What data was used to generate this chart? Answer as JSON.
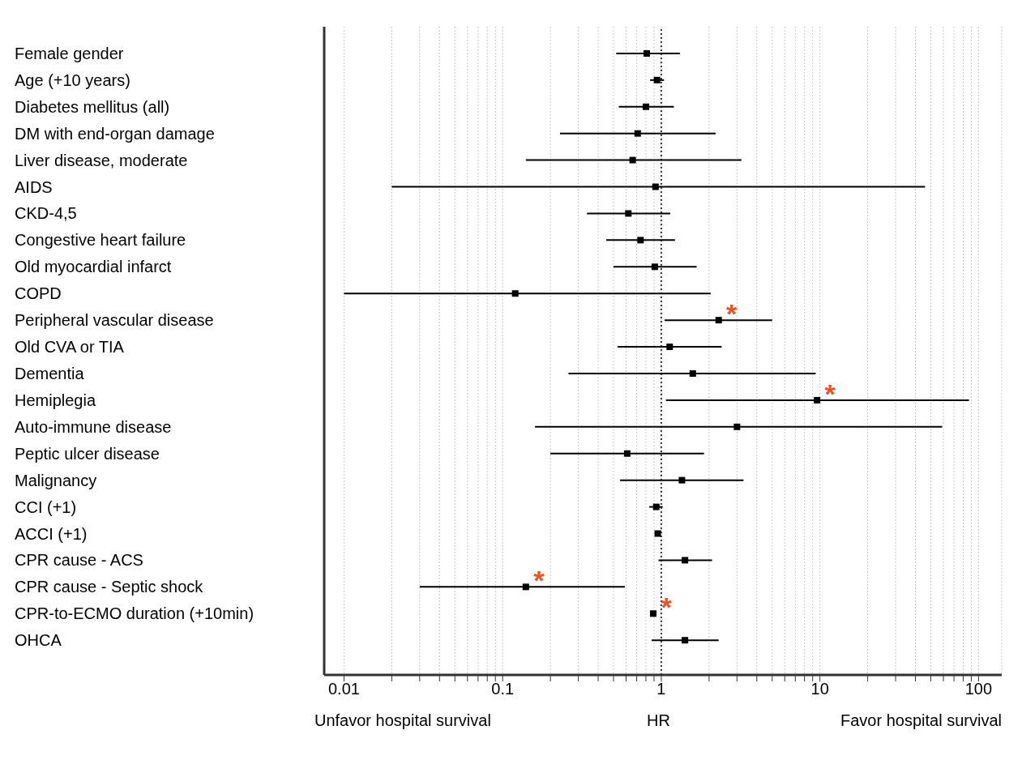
{
  "chart_data": {
    "type": "scatter",
    "orientation": "horizontal",
    "log": "x",
    "marker": "square",
    "grid": "x",
    "xlabel": "HR",
    "categories": [
      "Female gender",
      "Age (+10 years)",
      "Diabetes mellitus (all)",
      "DM with end-organ damage",
      "Liver disease, moderate",
      "AIDS",
      "CKD-4,5",
      "Congestive heart failure",
      "Old myocardial infarct",
      "COPD",
      "Peripheral vascular disease",
      "Old CVA or TIA",
      "Dementia",
      "Hemiplegia",
      "Auto-immune disease",
      "Peptic ulcer disease",
      "Malignancy",
      "CCI (+1)",
      "ACCI (+1)",
      "CPR cause - ACS",
      "CPR cause - Septic shock",
      "CPR-to-ECMO duration (+10min)",
      "OHCA"
    ],
    "series": [
      {
        "color": "#000000",
        "values": [
          0.81,
          0.94,
          0.8,
          0.71,
          0.66,
          0.92,
          0.62,
          0.74,
          0.91,
          0.12,
          2.3,
          1.13,
          1.58,
          9.6,
          3.0,
          0.61,
          1.35,
          0.93,
          0.95,
          1.41,
          0.14,
          0.89,
          1.41
        ],
        "errors": [
          [
            0.52,
            1.31
          ],
          [
            0.85,
            1.04
          ],
          [
            0.54,
            1.2
          ],
          [
            0.23,
            2.2
          ],
          [
            0.14,
            3.2
          ],
          [
            0.02,
            46
          ],
          [
            0.34,
            1.14
          ],
          [
            0.45,
            1.22
          ],
          [
            0.5,
            1.67
          ],
          [
            0.01,
            2.05
          ],
          [
            1.05,
            5.0
          ],
          [
            0.53,
            2.4
          ],
          [
            0.26,
            9.4
          ],
          [
            1.07,
            87
          ],
          [
            0.16,
            59
          ],
          [
            0.2,
            1.86
          ],
          [
            0.55,
            3.3
          ],
          [
            0.84,
            1.02
          ],
          null,
          [
            0.96,
            2.09
          ],
          [
            0.03,
            0.59
          ],
          null,
          [
            0.87,
            2.3
          ]
        ]
      }
    ],
    "xlim": [
      0.0075,
      140
    ],
    "xticks": [
      0.01,
      {
        "value": 0.02,
        "label": null
      },
      {
        "value": 0.03,
        "label": null
      },
      {
        "value": 0.04,
        "label": null
      },
      {
        "value": 0.05,
        "label": null
      },
      {
        "value": 0.06,
        "label": null
      },
      {
        "value": 0.07,
        "label": null
      },
      {
        "value": 0.08,
        "label": null
      },
      {
        "value": 0.09,
        "label": null
      },
      0.1,
      {
        "value": 0.2,
        "label": null
      },
      {
        "value": 0.3,
        "label": null
      },
      {
        "value": 0.4,
        "label": null
      },
      {
        "value": 0.5,
        "label": null
      },
      {
        "value": 0.6,
        "label": null
      },
      {
        "value": 0.7,
        "label": null
      },
      {
        "value": 0.8,
        "label": null
      },
      {
        "value": 0.9,
        "label": null
      },
      1,
      {
        "value": 2,
        "label": null
      },
      {
        "value": 3,
        "label": null
      },
      {
        "value": 4,
        "label": null
      },
      {
        "value": 5,
        "label": null
      },
      {
        "value": 6,
        "label": null
      },
      {
        "value": 7,
        "label": null
      },
      {
        "value": 8,
        "label": null
      },
      {
        "value": 9,
        "label": null
      },
      10,
      {
        "value": 20,
        "label": null
      },
      {
        "value": 30,
        "label": null
      },
      {
        "value": 40,
        "label": null
      },
      {
        "value": 50,
        "label": null
      },
      {
        "value": 60,
        "label": null
      },
      {
        "value": 70,
        "label": null
      },
      {
        "value": 80,
        "label": null
      },
      {
        "value": 90,
        "label": null
      },
      100
    ],
    "ref_lines": [
      {
        "axis": "x",
        "value": 1,
        "line_style": "dotted",
        "color": "#000000"
      }
    ],
    "annotations": [
      {
        "text": "*",
        "x": 2.3,
        "y": "Peripheral vascular disease"
      },
      {
        "text": "*",
        "x": 9.6,
        "y": "Hemiplegia"
      },
      {
        "text": "*",
        "x": 0.14,
        "y": "CPR cause - Septic shock"
      },
      {
        "text": "*",
        "x": 0.89,
        "y": "CPR-to-ECMO duration (+10min)"
      },
      "Unfavor hospital survival",
      "Favor hospital survival"
    ]
  }
}
